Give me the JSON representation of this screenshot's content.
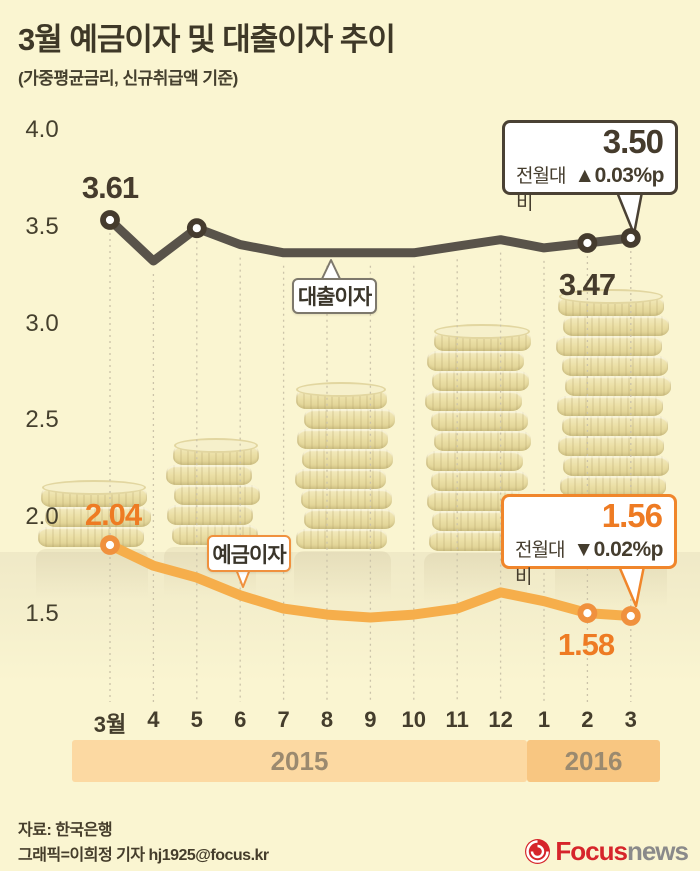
{
  "title": "3월 예금이자 및 대출이자 추이",
  "subtitle": "(가중평균금리, 신규취급액 기준)",
  "colors": {
    "background": "#faf5d1",
    "loan_line": "#59534a",
    "deposit_line": "#f6ae4b",
    "loan_marker": "#453b2e",
    "deposit_marker": "#f0913e",
    "orange_text": "#ee7b23",
    "dark_text": "#453b2c",
    "grid_dotted": "#cbc3a9",
    "band_2015": "#fcd9a2",
    "band_2016": "#f8c681",
    "logo_red": "#d6252b",
    "logo_gray": "#8a8a8a"
  },
  "chart_data": {
    "type": "line",
    "x_labels": [
      "3월",
      "4",
      "5",
      "6",
      "7",
      "8",
      "9",
      "10",
      "11",
      "12",
      "1",
      "2",
      "3"
    ],
    "y_ticks": [
      "4.0",
      "3.5",
      "3.0",
      "2.5",
      "2.0",
      "1.5"
    ],
    "ylim": [
      1.3,
      4.0
    ],
    "grid": "vertical-dotted",
    "legend_position": "inline-tags",
    "series": [
      {
        "name": "대출이자",
        "color": "#59534a",
        "values": [
          3.61,
          3.36,
          3.56,
          3.46,
          3.41,
          3.41,
          3.41,
          3.41,
          3.45,
          3.49,
          3.44,
          3.47,
          3.5
        ],
        "labeled_points": {
          "0": "3.61",
          "11": "3.47",
          "12": "3.50"
        },
        "marker_indices": [
          0,
          2,
          11,
          12
        ]
      },
      {
        "name": "예금이자",
        "color": "#f6ae4b",
        "values": [
          2.04,
          1.9,
          1.82,
          1.7,
          1.61,
          1.57,
          1.55,
          1.57,
          1.61,
          1.72,
          1.66,
          1.58,
          1.56
        ],
        "labeled_points": {
          "0": "2.04",
          "11": "1.58",
          "12": "1.56"
        },
        "marker_indices": [
          0,
          11,
          12
        ]
      }
    ],
    "year_bands": [
      {
        "label": "2015",
        "covers": "3월~12"
      },
      {
        "label": "2016",
        "covers": "1~3"
      }
    ]
  },
  "callouts": {
    "loan": {
      "value": "3.50",
      "compare_label": "전월대비",
      "delta": "▲0.03%p"
    },
    "deposit": {
      "value": "1.56",
      "compare_label": "전월대비",
      "delta": "▼0.02%p"
    }
  },
  "footer": {
    "source": "자료: 한국은행",
    "credit": "그래픽=이희정 기자 hj1925@focus.kr",
    "logo_focus": "Focus",
    "logo_news": "news"
  }
}
